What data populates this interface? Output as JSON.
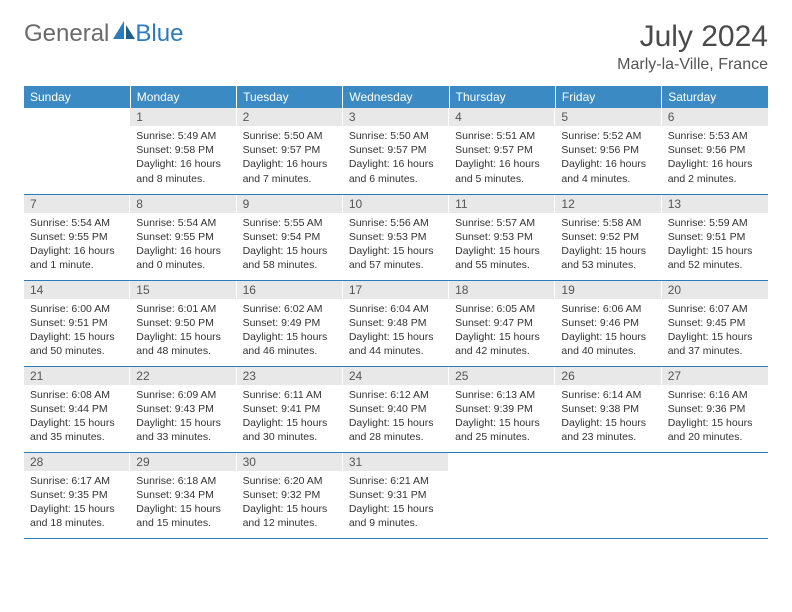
{
  "logo": {
    "text1": "General",
    "text2": "Blue"
  },
  "title": "July 2024",
  "location": "Marly-la-Ville, France",
  "weekdays": [
    "Sunday",
    "Monday",
    "Tuesday",
    "Wednesday",
    "Thursday",
    "Friday",
    "Saturday"
  ],
  "colors": {
    "header_bg": "#3b8ac4",
    "header_text": "#ffffff",
    "daynum_bg": "#e8e8e8",
    "border": "#2b7bbf",
    "logo_blue": "#2b7bbf",
    "logo_gray": "#6a6a6a"
  },
  "weeks": [
    [
      {
        "n": "",
        "sr": "",
        "ss": "",
        "dl": ""
      },
      {
        "n": "1",
        "sr": "Sunrise: 5:49 AM",
        "ss": "Sunset: 9:58 PM",
        "dl": "Daylight: 16 hours and 8 minutes."
      },
      {
        "n": "2",
        "sr": "Sunrise: 5:50 AM",
        "ss": "Sunset: 9:57 PM",
        "dl": "Daylight: 16 hours and 7 minutes."
      },
      {
        "n": "3",
        "sr": "Sunrise: 5:50 AM",
        "ss": "Sunset: 9:57 PM",
        "dl": "Daylight: 16 hours and 6 minutes."
      },
      {
        "n": "4",
        "sr": "Sunrise: 5:51 AM",
        "ss": "Sunset: 9:57 PM",
        "dl": "Daylight: 16 hours and 5 minutes."
      },
      {
        "n": "5",
        "sr": "Sunrise: 5:52 AM",
        "ss": "Sunset: 9:56 PM",
        "dl": "Daylight: 16 hours and 4 minutes."
      },
      {
        "n": "6",
        "sr": "Sunrise: 5:53 AM",
        "ss": "Sunset: 9:56 PM",
        "dl": "Daylight: 16 hours and 2 minutes."
      }
    ],
    [
      {
        "n": "7",
        "sr": "Sunrise: 5:54 AM",
        "ss": "Sunset: 9:55 PM",
        "dl": "Daylight: 16 hours and 1 minute."
      },
      {
        "n": "8",
        "sr": "Sunrise: 5:54 AM",
        "ss": "Sunset: 9:55 PM",
        "dl": "Daylight: 16 hours and 0 minutes."
      },
      {
        "n": "9",
        "sr": "Sunrise: 5:55 AM",
        "ss": "Sunset: 9:54 PM",
        "dl": "Daylight: 15 hours and 58 minutes."
      },
      {
        "n": "10",
        "sr": "Sunrise: 5:56 AM",
        "ss": "Sunset: 9:53 PM",
        "dl": "Daylight: 15 hours and 57 minutes."
      },
      {
        "n": "11",
        "sr": "Sunrise: 5:57 AM",
        "ss": "Sunset: 9:53 PM",
        "dl": "Daylight: 15 hours and 55 minutes."
      },
      {
        "n": "12",
        "sr": "Sunrise: 5:58 AM",
        "ss": "Sunset: 9:52 PM",
        "dl": "Daylight: 15 hours and 53 minutes."
      },
      {
        "n": "13",
        "sr": "Sunrise: 5:59 AM",
        "ss": "Sunset: 9:51 PM",
        "dl": "Daylight: 15 hours and 52 minutes."
      }
    ],
    [
      {
        "n": "14",
        "sr": "Sunrise: 6:00 AM",
        "ss": "Sunset: 9:51 PM",
        "dl": "Daylight: 15 hours and 50 minutes."
      },
      {
        "n": "15",
        "sr": "Sunrise: 6:01 AM",
        "ss": "Sunset: 9:50 PM",
        "dl": "Daylight: 15 hours and 48 minutes."
      },
      {
        "n": "16",
        "sr": "Sunrise: 6:02 AM",
        "ss": "Sunset: 9:49 PM",
        "dl": "Daylight: 15 hours and 46 minutes."
      },
      {
        "n": "17",
        "sr": "Sunrise: 6:04 AM",
        "ss": "Sunset: 9:48 PM",
        "dl": "Daylight: 15 hours and 44 minutes."
      },
      {
        "n": "18",
        "sr": "Sunrise: 6:05 AM",
        "ss": "Sunset: 9:47 PM",
        "dl": "Daylight: 15 hours and 42 minutes."
      },
      {
        "n": "19",
        "sr": "Sunrise: 6:06 AM",
        "ss": "Sunset: 9:46 PM",
        "dl": "Daylight: 15 hours and 40 minutes."
      },
      {
        "n": "20",
        "sr": "Sunrise: 6:07 AM",
        "ss": "Sunset: 9:45 PM",
        "dl": "Daylight: 15 hours and 37 minutes."
      }
    ],
    [
      {
        "n": "21",
        "sr": "Sunrise: 6:08 AM",
        "ss": "Sunset: 9:44 PM",
        "dl": "Daylight: 15 hours and 35 minutes."
      },
      {
        "n": "22",
        "sr": "Sunrise: 6:09 AM",
        "ss": "Sunset: 9:43 PM",
        "dl": "Daylight: 15 hours and 33 minutes."
      },
      {
        "n": "23",
        "sr": "Sunrise: 6:11 AM",
        "ss": "Sunset: 9:41 PM",
        "dl": "Daylight: 15 hours and 30 minutes."
      },
      {
        "n": "24",
        "sr": "Sunrise: 6:12 AM",
        "ss": "Sunset: 9:40 PM",
        "dl": "Daylight: 15 hours and 28 minutes."
      },
      {
        "n": "25",
        "sr": "Sunrise: 6:13 AM",
        "ss": "Sunset: 9:39 PM",
        "dl": "Daylight: 15 hours and 25 minutes."
      },
      {
        "n": "26",
        "sr": "Sunrise: 6:14 AM",
        "ss": "Sunset: 9:38 PM",
        "dl": "Daylight: 15 hours and 23 minutes."
      },
      {
        "n": "27",
        "sr": "Sunrise: 6:16 AM",
        "ss": "Sunset: 9:36 PM",
        "dl": "Daylight: 15 hours and 20 minutes."
      }
    ],
    [
      {
        "n": "28",
        "sr": "Sunrise: 6:17 AM",
        "ss": "Sunset: 9:35 PM",
        "dl": "Daylight: 15 hours and 18 minutes."
      },
      {
        "n": "29",
        "sr": "Sunrise: 6:18 AM",
        "ss": "Sunset: 9:34 PM",
        "dl": "Daylight: 15 hours and 15 minutes."
      },
      {
        "n": "30",
        "sr": "Sunrise: 6:20 AM",
        "ss": "Sunset: 9:32 PM",
        "dl": "Daylight: 15 hours and 12 minutes."
      },
      {
        "n": "31",
        "sr": "Sunrise: 6:21 AM",
        "ss": "Sunset: 9:31 PM",
        "dl": "Daylight: 15 hours and 9 minutes."
      },
      {
        "n": "",
        "sr": "",
        "ss": "",
        "dl": ""
      },
      {
        "n": "",
        "sr": "",
        "ss": "",
        "dl": ""
      },
      {
        "n": "",
        "sr": "",
        "ss": "",
        "dl": ""
      }
    ]
  ]
}
